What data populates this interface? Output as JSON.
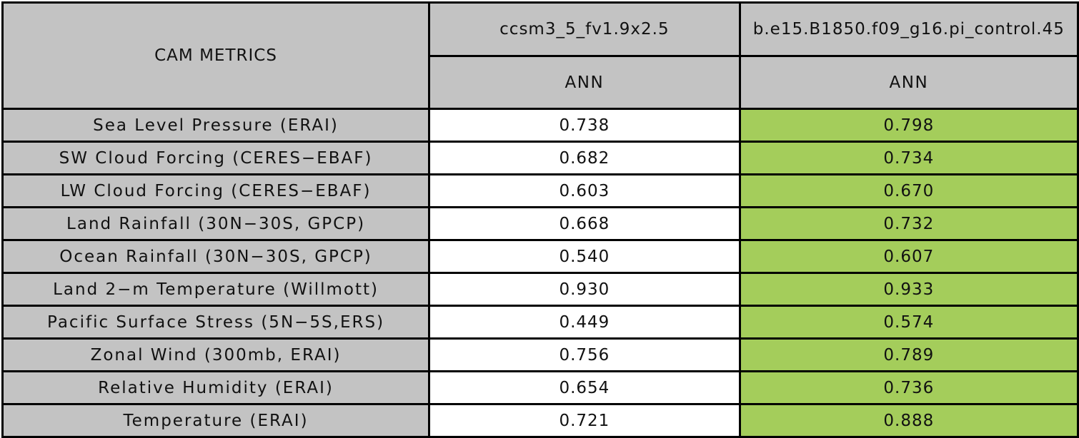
{
  "colors": {
    "title_cell_blue": "#6495EC",
    "header_and_label_gray": "#C3C3C3",
    "model1_value_white": "#FFFFFF",
    "model2_value_green": "#A4CD5B",
    "border_black": "#000000",
    "text_black": "#111111"
  },
  "chart_data": {
    "type": "table",
    "title": "CAM METRICS",
    "columns": [
      "ccsm3_5_fv1.9x2.5",
      "b.e15.B1850.f09_g16.pi_control.45"
    ],
    "subcolumns": [
      "ANN",
      "ANN"
    ],
    "note_layout": "left column gray labels; first value column white; second value column green highlight; second model header text clipped at right image edge",
    "rows": [
      {
        "label": "Sea Level Pressure (ERAI)",
        "values": [
          "0.738",
          "0.798"
        ]
      },
      {
        "label": "SW Cloud Forcing (CERES−EBAF)",
        "values": [
          "0.682",
          "0.734"
        ]
      },
      {
        "label": "LW Cloud Forcing (CERES−EBAF)",
        "values": [
          "0.603",
          "0.670"
        ]
      },
      {
        "label": "Land Rainfall (30N−30S, GPCP)",
        "values": [
          "0.668",
          "0.732"
        ]
      },
      {
        "label": "Ocean Rainfall (30N−30S, GPCP)",
        "values": [
          "0.540",
          "0.607"
        ]
      },
      {
        "label": "Land 2−m Temperature (Willmott)",
        "values": [
          "0.930",
          "0.933"
        ]
      },
      {
        "label": "Pacific Surface Stress (5N−5S,ERS)",
        "values": [
          "0.449",
          "0.574"
        ]
      },
      {
        "label": "Zonal Wind (300mb, ERAI)",
        "values": [
          "0.756",
          "0.789"
        ]
      },
      {
        "label": "Relative Humidity (ERAI)",
        "values": [
          "0.654",
          "0.736"
        ]
      },
      {
        "label": "Temperature (ERAI)",
        "values": [
          "0.721",
          "0.888"
        ]
      }
    ],
    "series": [
      {
        "name": "ccsm3_5_fv1.9x2.5",
        "season": "ANN",
        "values": [
          0.738,
          0.682,
          0.603,
          0.668,
          0.54,
          0.93,
          0.449,
          0.756,
          0.654,
          0.721
        ]
      },
      {
        "name": "b.e15.B1850.f09_g16.pi_control.45",
        "season": "ANN",
        "values": [
          0.798,
          0.734,
          0.67,
          0.732,
          0.607,
          0.933,
          0.574,
          0.789,
          0.736,
          0.888
        ]
      }
    ]
  }
}
